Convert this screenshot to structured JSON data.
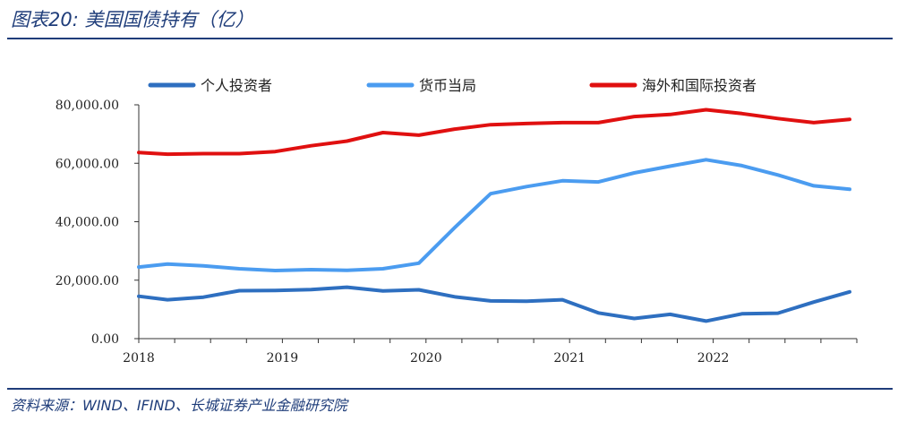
{
  "header": {
    "title": "图表20:  美国国债持有（亿）"
  },
  "footer": {
    "source": "资料来源：WIND、IFIND、长城证券产业金融研究院"
  },
  "chart_data": {
    "type": "line",
    "title": "美国国债持有（亿）",
    "ylim": [
      0,
      80000
    ],
    "yticks": [
      0,
      20000,
      40000,
      60000,
      80000
    ],
    "ytick_labels": [
      "0.00",
      "20,000.00",
      "40,000.00",
      "60,000.00",
      "80,000.00"
    ],
    "xlim": [
      2018,
      2023
    ],
    "xticks": [
      2018,
      2019,
      2020,
      2021,
      2022
    ],
    "xtick_labels": [
      "2018",
      "2019",
      "2020",
      "2021",
      "2022"
    ],
    "legend_position": "top",
    "x": [
      2018.0,
      2018.2,
      2018.45,
      2018.7,
      2018.95,
      2019.2,
      2019.45,
      2019.7,
      2019.95,
      2020.2,
      2020.45,
      2020.7,
      2020.95,
      2021.2,
      2021.45,
      2021.7,
      2021.95,
      2022.2,
      2022.45,
      2022.7,
      2022.95
    ],
    "series": [
      {
        "name": "个人投资者",
        "color": "#2e6fc0",
        "values": [
          14500,
          13300,
          14200,
          16400,
          16500,
          16800,
          17600,
          16300,
          16700,
          14300,
          12900,
          12800,
          13300,
          8800,
          6900,
          8300,
          6000,
          8500,
          8700,
          12500,
          16000
        ]
      },
      {
        "name": "货币当局",
        "color": "#4b9cf0",
        "values": [
          24500,
          25500,
          24900,
          23900,
          23300,
          23600,
          23400,
          23900,
          25800,
          38000,
          49600,
          52000,
          54000,
          53600,
          56700,
          59000,
          61200,
          59200,
          56000,
          52300,
          51100
        ]
      },
      {
        "name": "海外和国际投资者",
        "color": "#e01010",
        "values": [
          63700,
          63100,
          63300,
          63300,
          64000,
          66000,
          67600,
          70500,
          69600,
          71700,
          73200,
          73600,
          73900,
          73900,
          76000,
          76700,
          78300,
          77000,
          75300,
          73900,
          75000
        ]
      }
    ]
  }
}
